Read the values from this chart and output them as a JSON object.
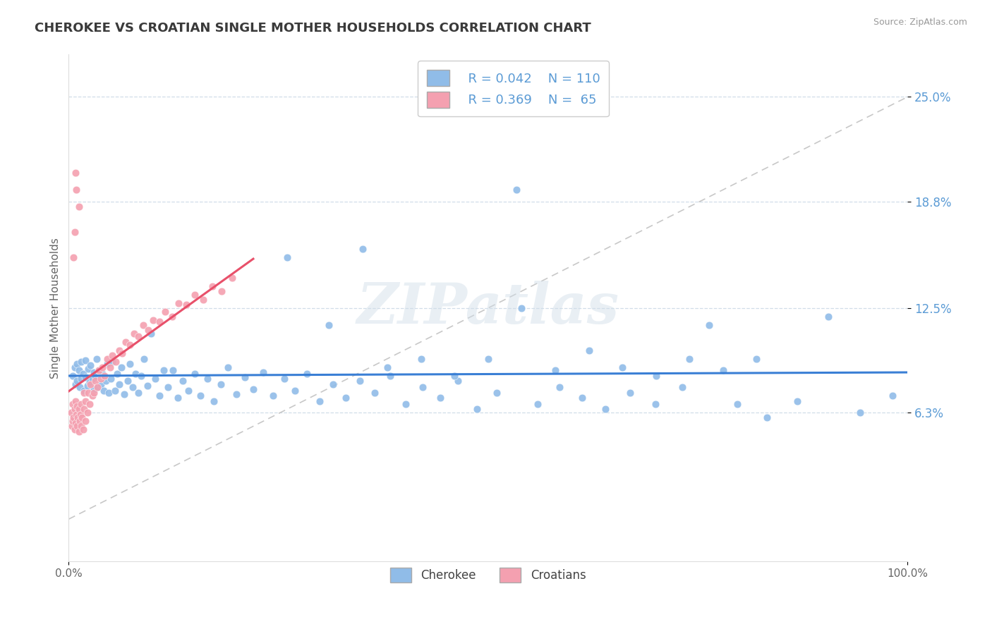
{
  "title": "CHEROKEE VS CROATIAN SINGLE MOTHER HOUSEHOLDS CORRELATION CHART",
  "source": "Source: ZipAtlas.com",
  "ylabel": "Single Mother Households",
  "xlim": [
    0.0,
    1.0
  ],
  "ylim": [
    -0.025,
    0.275
  ],
  "ytick_vals": [
    0.063,
    0.125,
    0.188,
    0.25
  ],
  "ytick_labels": [
    "6.3%",
    "12.5%",
    "18.8%",
    "25.0%"
  ],
  "xtick_vals": [
    0.0,
    1.0
  ],
  "xtick_labels": [
    "0.0%",
    "100.0%"
  ],
  "title_color": "#3a3a3a",
  "blue_dot_color": "#90bce8",
  "pink_dot_color": "#f4a0b0",
  "blue_line_color": "#3a7fd5",
  "pink_line_color": "#e8506a",
  "axis_label_color": "#5b9bd5",
  "grid_color": "#d0dde8",
  "dashed_line_color": "#c8c8c8",
  "source_color": "#999999",
  "legend_label1": "Cherokee",
  "legend_label2": "Croatians",
  "cherokee_x": [
    0.005,
    0.007,
    0.008,
    0.01,
    0.01,
    0.012,
    0.013,
    0.015,
    0.015,
    0.017,
    0.018,
    0.02,
    0.02,
    0.022,
    0.023,
    0.025,
    0.026,
    0.028,
    0.03,
    0.03,
    0.032,
    0.033,
    0.035,
    0.036,
    0.038,
    0.04,
    0.042,
    0.044,
    0.046,
    0.048,
    0.05,
    0.052,
    0.055,
    0.058,
    0.06,
    0.063,
    0.066,
    0.07,
    0.073,
    0.076,
    0.08,
    0.083,
    0.086,
    0.09,
    0.094,
    0.098,
    0.103,
    0.108,
    0.113,
    0.118,
    0.124,
    0.13,
    0.136,
    0.143,
    0.15,
    0.157,
    0.165,
    0.173,
    0.181,
    0.19,
    0.2,
    0.21,
    0.22,
    0.232,
    0.244,
    0.257,
    0.27,
    0.284,
    0.299,
    0.315,
    0.33,
    0.347,
    0.365,
    0.383,
    0.402,
    0.422,
    0.443,
    0.464,
    0.487,
    0.51,
    0.534,
    0.559,
    0.585,
    0.612,
    0.64,
    0.669,
    0.699,
    0.731,
    0.763,
    0.797,
    0.832,
    0.868,
    0.905,
    0.943,
    0.982,
    0.26,
    0.31,
    0.35,
    0.38,
    0.42,
    0.46,
    0.5,
    0.54,
    0.58,
    0.62,
    0.66,
    0.7,
    0.74,
    0.78,
    0.82
  ],
  "cherokee_y": [
    0.085,
    0.09,
    0.08,
    0.082,
    0.092,
    0.088,
    0.078,
    0.083,
    0.093,
    0.086,
    0.076,
    0.084,
    0.094,
    0.079,
    0.089,
    0.081,
    0.091,
    0.083,
    0.087,
    0.077,
    0.085,
    0.095,
    0.078,
    0.088,
    0.08,
    0.086,
    0.076,
    0.082,
    0.092,
    0.075,
    0.083,
    0.093,
    0.076,
    0.086,
    0.08,
    0.09,
    0.074,
    0.082,
    0.092,
    0.078,
    0.086,
    0.075,
    0.085,
    0.095,
    0.079,
    0.11,
    0.083,
    0.073,
    0.088,
    0.078,
    0.088,
    0.072,
    0.082,
    0.076,
    0.086,
    0.073,
    0.083,
    0.07,
    0.08,
    0.09,
    0.074,
    0.084,
    0.077,
    0.087,
    0.073,
    0.083,
    0.076,
    0.086,
    0.07,
    0.08,
    0.072,
    0.082,
    0.075,
    0.085,
    0.068,
    0.078,
    0.072,
    0.082,
    0.065,
    0.075,
    0.195,
    0.068,
    0.078,
    0.072,
    0.065,
    0.075,
    0.068,
    0.078,
    0.115,
    0.068,
    0.06,
    0.07,
    0.12,
    0.063,
    0.073,
    0.155,
    0.115,
    0.16,
    0.09,
    0.095,
    0.085,
    0.095,
    0.125,
    0.088,
    0.1,
    0.09,
    0.085,
    0.095,
    0.088,
    0.095
  ],
  "croatian_x": [
    0.003,
    0.004,
    0.005,
    0.005,
    0.006,
    0.007,
    0.007,
    0.008,
    0.008,
    0.009,
    0.01,
    0.01,
    0.011,
    0.012,
    0.012,
    0.013,
    0.014,
    0.015,
    0.015,
    0.016,
    0.017,
    0.018,
    0.018,
    0.02,
    0.02,
    0.022,
    0.023,
    0.025,
    0.026,
    0.028,
    0.03,
    0.032,
    0.034,
    0.036,
    0.038,
    0.04,
    0.043,
    0.046,
    0.049,
    0.052,
    0.056,
    0.06,
    0.064,
    0.068,
    0.073,
    0.078,
    0.083,
    0.089,
    0.095,
    0.101,
    0.108,
    0.115,
    0.123,
    0.131,
    0.14,
    0.15,
    0.16,
    0.171,
    0.182,
    0.195,
    0.008,
    0.012,
    0.007,
    0.006,
    0.009
  ],
  "croatian_y": [
    0.063,
    0.055,
    0.058,
    0.068,
    0.06,
    0.053,
    0.065,
    0.057,
    0.07,
    0.062,
    0.055,
    0.067,
    0.06,
    0.052,
    0.065,
    0.058,
    0.062,
    0.055,
    0.068,
    0.06,
    0.053,
    0.065,
    0.075,
    0.058,
    0.07,
    0.063,
    0.075,
    0.068,
    0.08,
    0.073,
    0.075,
    0.082,
    0.078,
    0.088,
    0.083,
    0.09,
    0.085,
    0.095,
    0.09,
    0.097,
    0.093,
    0.1,
    0.098,
    0.105,
    0.103,
    0.11,
    0.108,
    0.115,
    0.112,
    0.118,
    0.117,
    0.123,
    0.12,
    0.128,
    0.127,
    0.133,
    0.13,
    0.138,
    0.135,
    0.143,
    0.205,
    0.185,
    0.17,
    0.155,
    0.195
  ]
}
